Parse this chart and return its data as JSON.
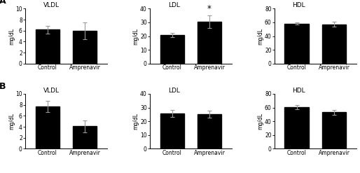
{
  "rows": [
    {
      "label": "A",
      "panels": [
        {
          "title": "VLDL",
          "ylabel": "mg/dL",
          "ylim": [
            0,
            10
          ],
          "yticks": [
            0,
            2,
            4,
            6,
            8,
            10
          ],
          "categories": [
            "Control",
            "Amprenavir"
          ],
          "values": [
            6.2,
            6.0
          ],
          "errors": [
            0.7,
            1.5
          ],
          "star": null
        },
        {
          "title": "LDL",
          "ylabel": "mg/dL",
          "ylim": [
            0,
            40
          ],
          "yticks": [
            0,
            10,
            20,
            30,
            40
          ],
          "categories": [
            "Control",
            "Amprenavir"
          ],
          "values": [
            21.0,
            30.5
          ],
          "errors": [
            1.5,
            4.5
          ],
          "star": 1
        },
        {
          "title": "HDL",
          "ylabel": "mg/dL",
          "ylim": [
            0,
            80
          ],
          "yticks": [
            0,
            20,
            40,
            60,
            80
          ],
          "categories": [
            "Control",
            "Amprenavir"
          ],
          "values": [
            58.0,
            57.0
          ],
          "errors": [
            1.5,
            3.5
          ],
          "star": null
        }
      ]
    },
    {
      "label": "B",
      "panels": [
        {
          "title": "VLDL",
          "ylabel": "mg/dL",
          "ylim": [
            0,
            10
          ],
          "yticks": [
            0,
            2,
            4,
            6,
            8,
            10
          ],
          "categories": [
            "Control",
            "Amprenavir"
          ],
          "values": [
            7.7,
            4.1
          ],
          "errors": [
            1.0,
            1.1
          ],
          "star": null
        },
        {
          "title": "LDL",
          "ylabel": "mg/dL",
          "ylim": [
            0,
            40
          ],
          "yticks": [
            0,
            10,
            20,
            30,
            40
          ],
          "categories": [
            "Control",
            "Amprenavir"
          ],
          "values": [
            25.5,
            25.0
          ],
          "errors": [
            2.5,
            2.5
          ],
          "star": null
        },
        {
          "title": "HDL",
          "ylabel": "mg/dL",
          "ylim": [
            0,
            80
          ],
          "yticks": [
            0,
            20,
            40,
            60,
            80
          ],
          "categories": [
            "Control",
            "Amprenavir"
          ],
          "values": [
            61.0,
            53.0
          ],
          "errors": [
            3.0,
            3.5
          ],
          "star": null
        }
      ]
    }
  ],
  "bar_color": "#000000",
  "bar_width": 0.65,
  "error_color": "#999999",
  "error_capsize": 2.5,
  "error_linewidth": 0.8,
  "label_fontsize": 5.5,
  "tick_fontsize": 5.5,
  "title_fontsize": 6.5,
  "row_label_fontsize": 9,
  "background_color": "#ffffff"
}
